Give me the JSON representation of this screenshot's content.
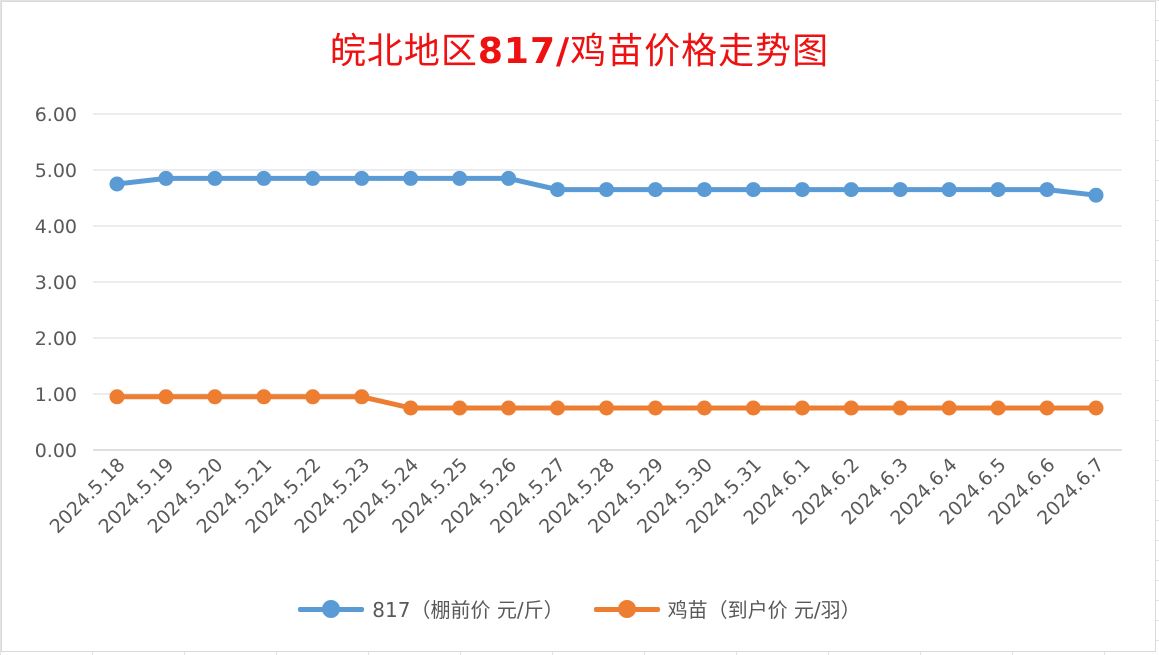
{
  "chart_data": {
    "type": "line",
    "title_parts": [
      "皖北地区",
      "817/",
      "鸡苗价格走势图"
    ],
    "categories": [
      "2024.5.18",
      "2024.5.19",
      "2024.5.20",
      "2024.5.21",
      "2024.5.22",
      "2024.5.23",
      "2024.5.24",
      "2024.5.25",
      "2024.5.26",
      "2024.5.27",
      "2024.5.28",
      "2024.5.29",
      "2024.5.30",
      "2024.5.31",
      "2024.6.1",
      "2024.6.2",
      "2024.6.3",
      "2024.6.4",
      "2024.6.5",
      "2024.6.6",
      "2024.6.7"
    ],
    "series": [
      {
        "name": "817（棚前价 元/斤）",
        "color": "#5b9bd5",
        "values": [
          4.75,
          4.85,
          4.85,
          4.85,
          4.85,
          4.85,
          4.85,
          4.85,
          4.85,
          4.65,
          4.65,
          4.65,
          4.65,
          4.65,
          4.65,
          4.65,
          4.65,
          4.65,
          4.65,
          4.65,
          4.55
        ]
      },
      {
        "name": "鸡苗（到户价 元/羽）",
        "color": "#ed7d31",
        "values": [
          0.95,
          0.95,
          0.95,
          0.95,
          0.95,
          0.95,
          0.75,
          0.75,
          0.75,
          0.75,
          0.75,
          0.75,
          0.75,
          0.75,
          0.75,
          0.75,
          0.75,
          0.75,
          0.75,
          0.75,
          0.75
        ]
      }
    ],
    "ylim": [
      0,
      6
    ],
    "yticks": [
      "0.00",
      "1.00",
      "2.00",
      "3.00",
      "4.00",
      "5.00",
      "6.00"
    ],
    "grid": true,
    "legend_position": "bottom",
    "title_color": "#ee1111"
  }
}
